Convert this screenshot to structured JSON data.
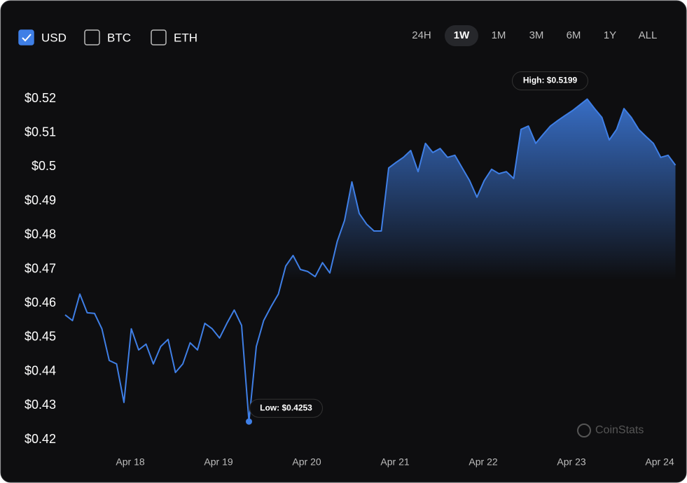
{
  "controls": {
    "currencies": [
      {
        "label": "USD",
        "checked": true
      },
      {
        "label": "BTC",
        "checked": false
      },
      {
        "label": "ETH",
        "checked": false
      }
    ],
    "ranges": [
      {
        "label": "24H",
        "active": false
      },
      {
        "label": "1W",
        "active": true
      },
      {
        "label": "1M",
        "active": false
      },
      {
        "label": "3M",
        "active": false
      },
      {
        "label": "6M",
        "active": false
      },
      {
        "label": "1Y",
        "active": false
      },
      {
        "label": "ALL",
        "active": false
      }
    ],
    "watermark": "CoinStats"
  },
  "chart_data": {
    "type": "line",
    "color": "#3f7fe6",
    "values": [
      0.4566,
      0.4549,
      0.4627,
      0.4572,
      0.457,
      0.4525,
      0.4432,
      0.4422,
      0.4309,
      0.4525,
      0.4463,
      0.448,
      0.4422,
      0.4473,
      0.4494,
      0.4397,
      0.4422,
      0.4484,
      0.4463,
      0.4541,
      0.4525,
      0.4498,
      0.4541,
      0.458,
      0.4535,
      0.4253,
      0.4473,
      0.4549,
      0.459,
      0.4627,
      0.4709,
      0.474,
      0.4699,
      0.4693,
      0.4678,
      0.4719,
      0.4689,
      0.4781,
      0.4843,
      0.4956,
      0.4863,
      0.4832,
      0.4812,
      0.4812,
      0.4997,
      0.5013,
      0.5028,
      0.5048,
      0.4986,
      0.5069,
      0.5042,
      0.5054,
      0.5028,
      0.5034,
      0.4997,
      0.496,
      0.4911,
      0.496,
      0.4993,
      0.498,
      0.4986,
      0.4966,
      0.511,
      0.512,
      0.5069,
      0.5095,
      0.512,
      0.5136,
      0.5151,
      0.5165,
      0.5182,
      0.5199,
      0.5171,
      0.5145,
      0.5079,
      0.511,
      0.5171,
      0.5145,
      0.511,
      0.5089,
      0.5069,
      0.5028,
      0.5034,
      0.5005
    ],
    "xlim": [
      0,
      83
    ],
    "xticks": [
      {
        "value": 8.86,
        "label": "Apr 18"
      },
      {
        "value": 20.86,
        "label": "Apr 19"
      },
      {
        "value": 32.86,
        "label": "Apr 20"
      },
      {
        "value": 44.86,
        "label": "Apr 21"
      },
      {
        "value": 56.86,
        "label": "Apr 22"
      },
      {
        "value": 68.86,
        "label": "Apr 23"
      },
      {
        "value": 80.86,
        "label": "Apr 24"
      }
    ],
    "ylim": [
      0.42,
      0.52
    ],
    "yticks": [
      {
        "value": 0.42,
        "label": "$0.42"
      },
      {
        "value": 0.43,
        "label": "$0.43"
      },
      {
        "value": 0.44,
        "label": "$0.44"
      },
      {
        "value": 0.45,
        "label": "$0.45"
      },
      {
        "value": 0.46,
        "label": "$0.46"
      },
      {
        "value": 0.47,
        "label": "$0.47"
      },
      {
        "value": 0.48,
        "label": "$0.48"
      },
      {
        "value": 0.49,
        "label": "$0.49"
      },
      {
        "value": 0.5,
        "label": "$0.5"
      },
      {
        "value": 0.51,
        "label": "$0.51"
      },
      {
        "value": 0.52,
        "label": "$0.52"
      }
    ],
    "high_label": "High: $0.5199",
    "low_label": "Low: $0.4253"
  }
}
